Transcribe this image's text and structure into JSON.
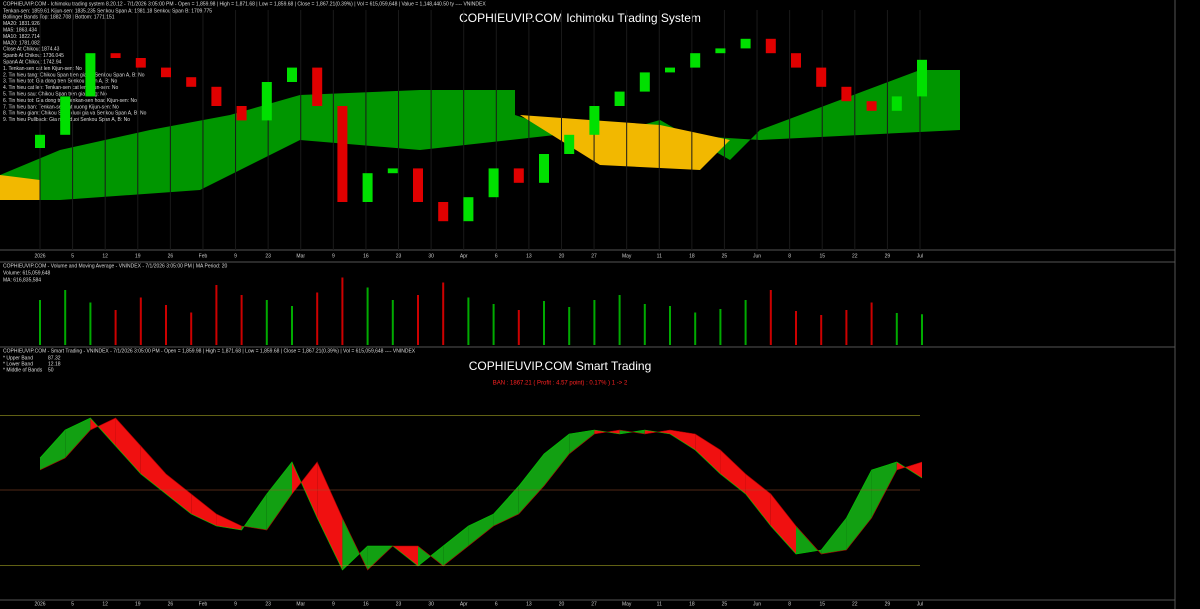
{
  "header": {
    "ichimoku": "COPHIEUVIP.COM - Ichimoku trading system 8.20.12 - 7/1/2026 3:05:00 PM - Open = 1,859.98 | High = 1,871.68 | Low = 1,859.68 | Close = 1,867.21(0.39%) | Vol = 615,059,648 | Value = 1,148,440.50 ty ---- VNINDEX",
    "notes": [
      "Tenkan-sen: 1859.61  Kijun-sen: 1835.235  Senkou Span A: 1881.18  Senkou Span B: 1709.775",
      "Bollinger Bands Top: 1882.708 | Bottom: 1771.151",
      "MA20: 1831.926",
      "MA5: 1863.434",
      "MA10: 1822.714",
      "MA20: 1781.082",
      "Close At Chikou: 1874.43",
      "Spanb At Chikou: 1736.045",
      "SpanA At Chikou: 1742.94",
      "1. Tenkan-sen cat len Kijun-sen: No",
      "2. Tin hieu tang: Chikou Span tren gia va Senkou Span A, B: No",
      "3. Tin hieu tot: Gia dong tren Senkou Span A, B: No",
      "4. Tin hieu cat len: Tenkan-sen cat len Kijun-sen: No",
      "5. Tin hieu sau: Chikou Span tren gia dong: No",
      "6. Tin hieu tot: Gia dong tren Tenkan-sen hoac Kijun-sen: No",
      "7. Tin hieu ban: Tenkan-sen cat xuong Kijun-sen: No",
      "8. Tin hieu giam: Chikou Span duoi gia va Senkou Span A, B: No",
      "9. Tin hieu Pullback: Gia nam duoi Senkou Span A, B: No"
    ],
    "volume": "COPHIEUVIP.COM - Volume and Moving Average - VNINDEX - 7/1/2026 3:05:00 PM | MA Period: 20",
    "volume_now": "Volume: 615,059,648",
    "volume_ma": "MA: 616,835,584",
    "smart": "COPHIEUVIP.COM - Smart Trading - VNINDEX - 7/1/2026 3:05:00 PM - Open = 1,859.98 | High = 1,871.68 | Low = 1,859.68 | Close = 1,867.21(0.39%) | Vol = 615,059,648 ---- VNINDEX",
    "signal": "BAN : 1867.21 ( Profit : 4.57 point) : 0.17% ) 1 -> 2"
  },
  "x_labels": [
    "2026",
    "5",
    "12",
    "19",
    "26",
    "Feb",
    "9",
    "23",
    "Mar",
    "9",
    "16",
    "23",
    "30",
    "Apr",
    "6",
    "13",
    "20",
    "27",
    "May",
    "11",
    "18",
    "25",
    "Jun",
    "8",
    "15",
    "22",
    "29",
    "Jul"
  ],
  "chart_data": [
    {
      "type": "candlestick",
      "title": "COPHIEUVIP.COM Ichimoku Trading System",
      "ylim": [
        1550,
        1950
      ],
      "open": [
        1720,
        1742,
        1806,
        1878,
        1870,
        1854,
        1838,
        1822,
        1790,
        1766,
        1830,
        1854,
        1790,
        1630,
        1678,
        1686,
        1630,
        1598,
        1638,
        1686,
        1662,
        1710,
        1742,
        1790,
        1814,
        1846,
        1854,
        1878,
        1886,
        1902,
        1878,
        1854,
        1822,
        1798,
        1782,
        1806
      ],
      "close": [
        1742,
        1806,
        1878,
        1870,
        1854,
        1838,
        1822,
        1790,
        1766,
        1830,
        1854,
        1790,
        1630,
        1678,
        1686,
        1630,
        1598,
        1638,
        1686,
        1662,
        1710,
        1742,
        1790,
        1814,
        1846,
        1854,
        1878,
        1886,
        1902,
        1878,
        1854,
        1822,
        1798,
        1782,
        1806,
        1867
      ],
      "up_color": "#00e000",
      "down_color": "#e00000"
    },
    {
      "type": "bar",
      "ylim": [
        0,
        1500000000
      ],
      "values": [
        900000000,
        1100000000,
        850000000,
        700000000,
        950000000,
        800000000,
        650000000,
        1200000000,
        1000000000,
        900000000,
        780000000,
        1050000000,
        1350000000,
        1150000000,
        900000000,
        1000000000,
        1250000000,
        950000000,
        820000000,
        700000000,
        880000000,
        760000000,
        900000000,
        1000000000,
        820000000,
        780000000,
        650000000,
        720000000,
        900000000,
        1100000000,
        680000000,
        600000000,
        700000000,
        850000000,
        640000000,
        615059648
      ]
    },
    {
      "type": "oscillator",
      "title": "COPHIEUVIP.COM Smart Trading",
      "ylim": [
        0,
        100
      ],
      "series": [
        {
          "name": "Fast",
          "values": [
            66,
            80,
            86,
            72,
            58,
            48,
            38,
            32,
            30,
            48,
            64,
            36,
            10,
            22,
            22,
            12,
            22,
            32,
            38,
            52,
            68,
            78,
            80,
            78,
            80,
            78,
            70,
            58,
            48,
            32,
            18,
            20,
            36,
            60,
            64,
            56
          ]
        },
        {
          "name": "Slow",
          "values": [
            60,
            66,
            80,
            86,
            72,
            58,
            48,
            38,
            32,
            30,
            48,
            64,
            36,
            10,
            22,
            22,
            12,
            22,
            32,
            38,
            52,
            68,
            78,
            80,
            78,
            80,
            78,
            70,
            58,
            48,
            32,
            18,
            20,
            36,
            60,
            64
          ]
        }
      ],
      "bands": [
        {
          "name": "* Upper Band",
          "value": 87.32
        },
        {
          "name": "* Lower Band",
          "value": 12.18
        },
        {
          "name": "* Middle of Bands",
          "value": 50
        }
      ]
    }
  ]
}
